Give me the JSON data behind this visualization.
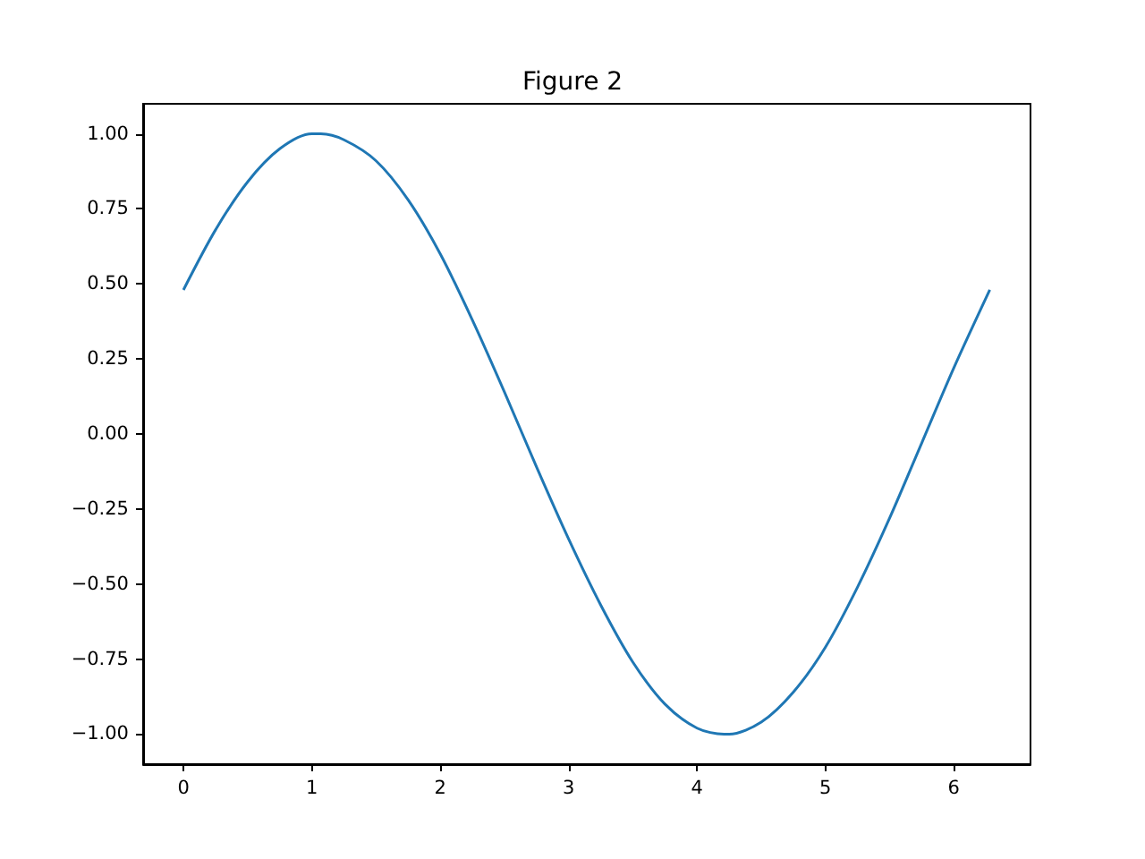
{
  "chart_data": {
    "type": "line",
    "title": "Figure 2",
    "x": [
      0,
      0.25,
      0.5,
      0.75,
      1.0,
      1.07,
      1.25,
      1.5,
      1.75,
      2.0,
      2.25,
      2.5,
      2.75,
      3.0,
      3.25,
      3.5,
      3.75,
      4.0,
      4.21,
      4.25,
      4.5,
      4.75,
      5.0,
      5.25,
      5.5,
      5.75,
      6.0,
      6.28
    ],
    "series": [
      {
        "color": "#1f77b4",
        "values": [
          0.48,
          0.68,
          0.84,
          0.95,
          1.0,
          1.0,
          0.98,
          0.91,
          0.78,
          0.6,
          0.38,
          0.14,
          -0.11,
          -0.35,
          -0.57,
          -0.76,
          -0.9,
          -0.98,
          -1.0,
          -1.0,
          -0.96,
          -0.86,
          -0.71,
          -0.51,
          -0.28,
          -0.03,
          0.22,
          0.48
        ]
      }
    ],
    "xlim": [
      -0.314,
      6.597
    ],
    "xticks": [
      0,
      1,
      2,
      3,
      4,
      5,
      6
    ],
    "ylim": [
      -1.1,
      1.1
    ],
    "yticks": [
      {
        "value": -1,
        "label": "−1.00"
      },
      {
        "value": -0.75,
        "label": "−0.75"
      },
      {
        "value": -0.5,
        "label": "−0.50"
      },
      {
        "value": -0.25,
        "label": "−0.25"
      },
      {
        "value": 0,
        "label": "0.00"
      },
      {
        "value": 0.25,
        "label": "0.25"
      },
      {
        "value": 0.5,
        "label": "0.50"
      },
      {
        "value": 0.75,
        "label": "0.75"
      },
      {
        "value": 1,
        "label": "1.00"
      }
    ],
    "marker": "none",
    "line_style": "solid"
  }
}
